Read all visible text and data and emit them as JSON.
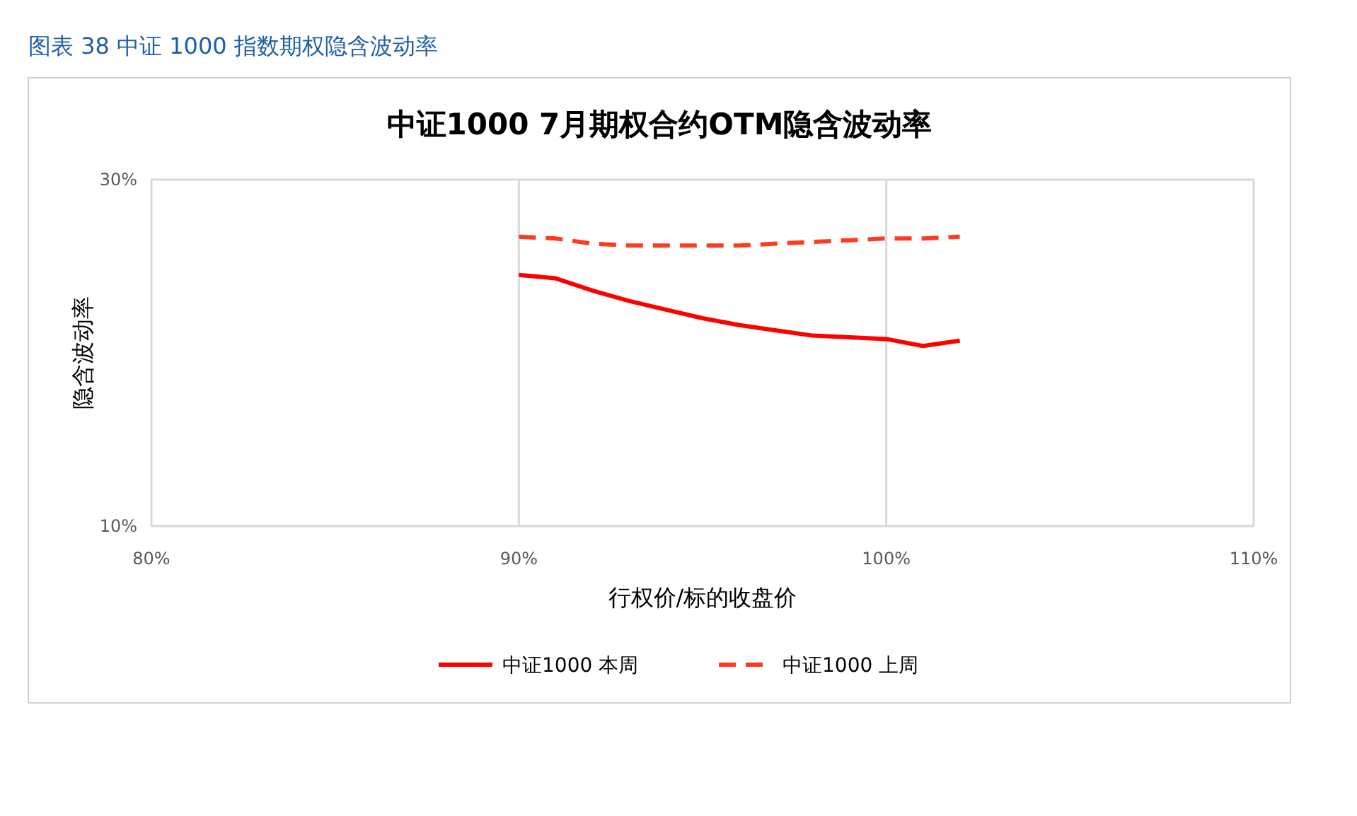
{
  "chart_data": {
    "type": "line",
    "title": "中证1000 7月期权合约OTM隐含波动率",
    "xlabel": "行权价/标的收盘价",
    "ylabel": "隐含波动率",
    "annotations": [
      "图表 38  中证 1000 指数期权隐含波动率"
    ],
    "x": [
      90,
      91,
      92,
      93,
      94,
      95,
      96,
      97,
      98,
      99,
      100,
      101,
      102
    ],
    "series": [
      {
        "name": "中证1000 本周",
        "color": "#ff0000",
        "line_style": "solid",
        "values": [
          24.5,
          24.3,
          23.6,
          23.0,
          22.5,
          22.0,
          21.6,
          21.3,
          21.0,
          20.9,
          20.8,
          20.4,
          20.7
        ]
      },
      {
        "name": "中证1000 上周",
        "color": "#ff3b1f",
        "line_style": "dashed",
        "values": [
          26.7,
          26.6,
          26.3,
          26.2,
          26.2,
          26.2,
          26.2,
          26.3,
          26.4,
          26.5,
          26.6,
          26.6,
          26.7
        ]
      }
    ],
    "xlim": [
      80,
      110
    ],
    "xticks": [
      {
        "value": 80,
        "label": "80%"
      },
      {
        "value": 90,
        "label": "90%"
      },
      {
        "value": 100,
        "label": "100%"
      },
      {
        "value": 110,
        "label": "110%"
      }
    ],
    "ylim": [
      10,
      30
    ],
    "yticks": [
      {
        "value": 10,
        "label": "10%"
      },
      {
        "value": 30,
        "label": "30%"
      }
    ],
    "grid": "x",
    "legend": "bottom"
  }
}
